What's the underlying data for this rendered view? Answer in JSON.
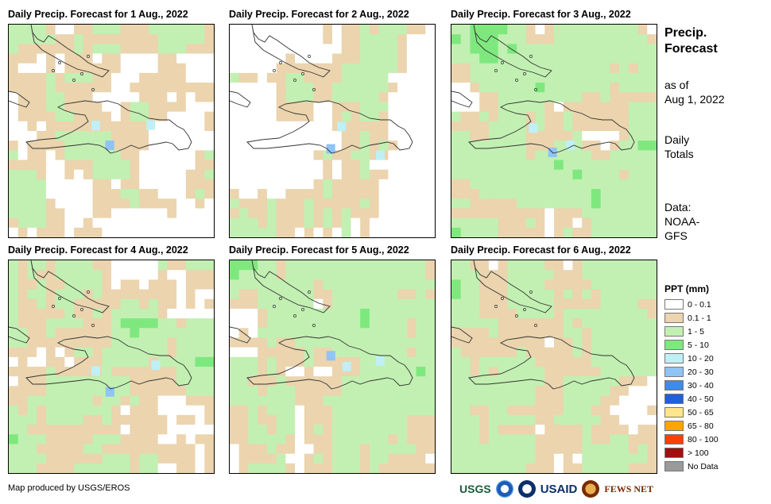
{
  "panels": [
    {
      "title": "Daily Precip. Forecast for 1 Aug., 2022",
      "day": 1
    },
    {
      "title": "Daily Precip. Forecast for 2 Aug., 2022",
      "day": 2
    },
    {
      "title": "Daily Precip. Forecast for 3 Aug., 2022",
      "day": 3
    },
    {
      "title": "Daily Precip. Forecast for 4 Aug., 2022",
      "day": 4
    },
    {
      "title": "Daily Precip. Forecast for 5 Aug., 2022",
      "day": 5
    },
    {
      "title": "Daily Precip. Forecast for 6 Aug., 2022",
      "day": 6
    }
  ],
  "side": {
    "title_line1": "Precip.",
    "title_line2": "Forecast",
    "asof_line1": "as of",
    "asof_line2": "Aug 1, 2022",
    "daily_line1": "Daily",
    "daily_line2": "Totals",
    "data_line1": "Data:",
    "data_line2": "NOAA-",
    "data_line3": "GFS"
  },
  "legend": {
    "title": "PPT (mm)",
    "items": [
      {
        "label": "0 - 0.1",
        "color": "#ffffff"
      },
      {
        "label": "0.1 - 1",
        "color": "#ebd4ae"
      },
      {
        "label": "1 - 5",
        "color": "#c2f0b2"
      },
      {
        "label": "5 - 10",
        "color": "#7ee87e"
      },
      {
        "label": "10 - 20",
        "color": "#bff0f5"
      },
      {
        "label": "20 - 30",
        "color": "#8fc4f5"
      },
      {
        "label": "30 - 40",
        "color": "#3c8ce8"
      },
      {
        "label": "40 - 50",
        "color": "#2060d8"
      },
      {
        "label": "50 - 65",
        "color": "#ffe68c"
      },
      {
        "label": "65 - 80",
        "color": "#ffa500"
      },
      {
        "label": "80 - 100",
        "color": "#ff4000"
      },
      {
        "label": "> 100",
        "color": "#a01010"
      },
      {
        "label": "No Data",
        "color": "#9a9a9a"
      }
    ]
  },
  "credit": "Map produced by USGS/EROS",
  "logos": {
    "usgs": "USGS",
    "usaid": "USAID",
    "fews": "FEWS NET"
  }
}
